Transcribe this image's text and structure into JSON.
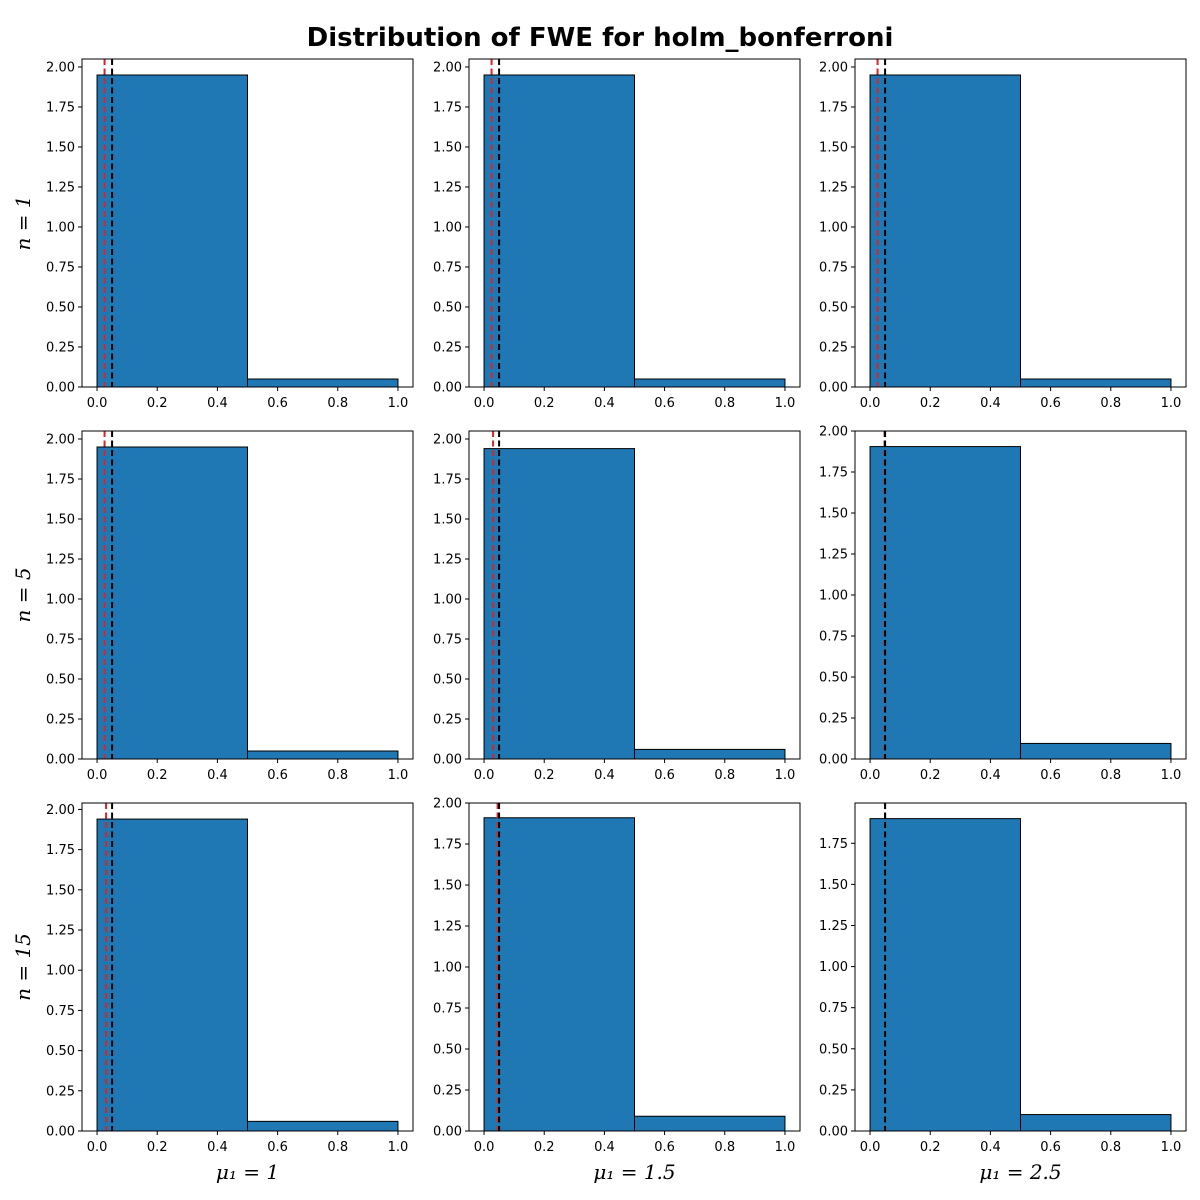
{
  "title": "Distribution of FWE for holm_bonferroni",
  "row_labels": [
    "n = 1",
    "n = 5",
    "n = 15"
  ],
  "col_labels": [
    "μ₁ = 1",
    "μ₁ = 1.5",
    "μ₁ = 2.5"
  ],
  "colors": {
    "bar": "#1f77b4",
    "edge": "#000000",
    "mean_line": "#d62728",
    "alpha_line": "#000000"
  },
  "chart_data": [
    {
      "type": "histogram",
      "row": "n = 1",
      "col": "μ₁ = 1",
      "bins": [
        0,
        0.5,
        1.0
      ],
      "densities": [
        1.95,
        0.05
      ],
      "xlim": [
        -0.05,
        1.05
      ],
      "ylim": [
        0,
        2.05
      ],
      "yticks": [
        0,
        0.25,
        0.5,
        0.75,
        1.0,
        1.25,
        1.5,
        1.75,
        2.0
      ],
      "xticks": [
        0,
        0.2,
        0.4,
        0.6,
        0.8,
        1.0
      ],
      "red_line": 0.025,
      "black_line": 0.05
    },
    {
      "type": "histogram",
      "row": "n = 1",
      "col": "μ₁ = 1.5",
      "bins": [
        0,
        0.5,
        1.0
      ],
      "densities": [
        1.95,
        0.05
      ],
      "xlim": [
        -0.05,
        1.05
      ],
      "ylim": [
        0,
        2.05
      ],
      "yticks": [
        0,
        0.25,
        0.5,
        0.75,
        1.0,
        1.25,
        1.5,
        1.75,
        2.0
      ],
      "xticks": [
        0,
        0.2,
        0.4,
        0.6,
        0.8,
        1.0
      ],
      "red_line": 0.025,
      "black_line": 0.05
    },
    {
      "type": "histogram",
      "row": "n = 1",
      "col": "μ₁ = 2.5",
      "bins": [
        0,
        0.5,
        1.0
      ],
      "densities": [
        1.95,
        0.05
      ],
      "xlim": [
        -0.05,
        1.05
      ],
      "ylim": [
        0,
        2.05
      ],
      "yticks": [
        0,
        0.25,
        0.5,
        0.75,
        1.0,
        1.25,
        1.5,
        1.75,
        2.0
      ],
      "xticks": [
        0,
        0.2,
        0.4,
        0.6,
        0.8,
        1.0
      ],
      "red_line": 0.025,
      "black_line": 0.05
    },
    {
      "type": "histogram",
      "row": "n = 5",
      "col": "μ₁ = 1",
      "bins": [
        0,
        0.5,
        1.0
      ],
      "densities": [
        1.95,
        0.05
      ],
      "xlim": [
        -0.05,
        1.05
      ],
      "ylim": [
        0,
        2.05
      ],
      "yticks": [
        0,
        0.25,
        0.5,
        0.75,
        1.0,
        1.25,
        1.5,
        1.75,
        2.0
      ],
      "xticks": [
        0,
        0.2,
        0.4,
        0.6,
        0.8,
        1.0
      ],
      "red_line": 0.025,
      "black_line": 0.05
    },
    {
      "type": "histogram",
      "row": "n = 5",
      "col": "μ₁ = 1.5",
      "bins": [
        0,
        0.5,
        1.0
      ],
      "densities": [
        1.94,
        0.06
      ],
      "xlim": [
        -0.05,
        1.05
      ],
      "ylim": [
        0,
        2.05
      ],
      "yticks": [
        0,
        0.25,
        0.5,
        0.75,
        1.0,
        1.25,
        1.5,
        1.75,
        2.0
      ],
      "xticks": [
        0,
        0.2,
        0.4,
        0.6,
        0.8,
        1.0
      ],
      "red_line": 0.03,
      "black_line": 0.05
    },
    {
      "type": "histogram",
      "row": "n = 5",
      "col": "μ₁ = 2.5",
      "bins": [
        0,
        0.5,
        1.0
      ],
      "densities": [
        1.905,
        0.095
      ],
      "xlim": [
        -0.05,
        1.05
      ],
      "ylim": [
        0,
        2.0
      ],
      "yticks": [
        0,
        0.25,
        0.5,
        0.75,
        1.0,
        1.25,
        1.5,
        1.75,
        2.0
      ],
      "xticks": [
        0,
        0.2,
        0.4,
        0.6,
        0.8,
        1.0
      ],
      "red_line": 0.048,
      "black_line": 0.05
    },
    {
      "type": "histogram",
      "row": "n = 15",
      "col": "μ₁ = 1",
      "bins": [
        0,
        0.5,
        1.0
      ],
      "densities": [
        1.94,
        0.06
      ],
      "xlim": [
        -0.05,
        1.05
      ],
      "ylim": [
        0,
        2.04
      ],
      "yticks": [
        0,
        0.25,
        0.5,
        0.75,
        1.0,
        1.25,
        1.5,
        1.75,
        2.0
      ],
      "xticks": [
        0,
        0.2,
        0.4,
        0.6,
        0.8,
        1.0
      ],
      "red_line": 0.03,
      "black_line": 0.05
    },
    {
      "type": "histogram",
      "row": "n = 15",
      "col": "μ₁ = 1.5",
      "bins": [
        0,
        0.5,
        1.0
      ],
      "densities": [
        1.91,
        0.09
      ],
      "xlim": [
        -0.05,
        1.05
      ],
      "ylim": [
        0,
        2.0
      ],
      "yticks": [
        0,
        0.25,
        0.5,
        0.75,
        1.0,
        1.25,
        1.5,
        1.75,
        2.0
      ],
      "xticks": [
        0,
        0.2,
        0.4,
        0.6,
        0.8,
        1.0
      ],
      "red_line": 0.045,
      "black_line": 0.05
    },
    {
      "type": "histogram",
      "row": "n = 15",
      "col": "μ₁ = 2.5",
      "bins": [
        0,
        0.5,
        1.0
      ],
      "densities": [
        1.9,
        0.1
      ],
      "xlim": [
        -0.05,
        1.05
      ],
      "ylim": [
        0,
        1.995
      ],
      "yticks": [
        0,
        0.25,
        0.5,
        0.75,
        1.0,
        1.25,
        1.5,
        1.75
      ],
      "xticks": [
        0,
        0.2,
        0.4,
        0.6,
        0.8,
        1.0
      ],
      "red_line": 0.05,
      "black_line": 0.05
    }
  ]
}
